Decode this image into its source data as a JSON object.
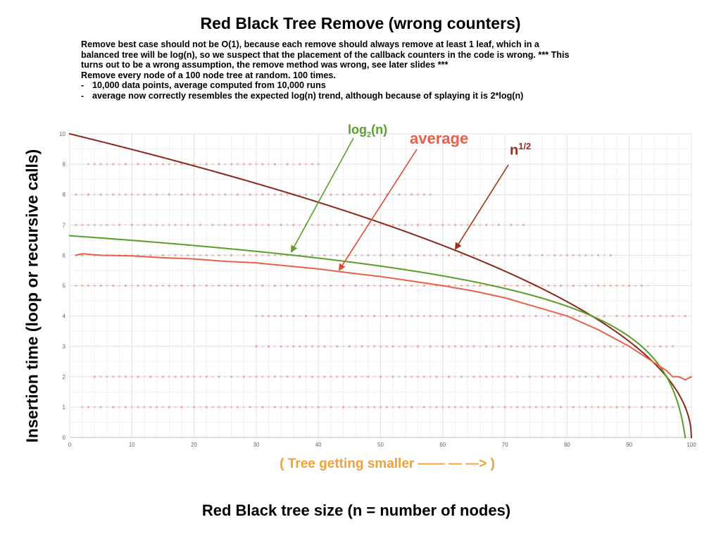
{
  "title": "Red Black Tree Remove (wrong counters)",
  "notes": {
    "lines": [
      "Remove best case should not be O(1), because each remove should always remove at least 1 leaf, which in a",
      "balanced tree will be log(n), so we suspect that the placement of the callback counters in the code is wrong. *** This",
      "turns out to be a wrong assumption, the remove method was wrong, see later slides ***",
      "Remove every node of a 100 node tree at random. 100 times."
    ],
    "bullets": [
      "10,000 data points, average computed from 10,000 runs",
      "average now correctly resembles the expected log(n) trend, although because of splaying it is 2*log(n)"
    ],
    "bullet_marker": "-"
  },
  "y_axis_label": "Insertion time (loop or recursive calls)",
  "x_note": "( Tree getting smaller —— — —> )",
  "x_axis_label": "Red Black tree size (n = number of nodes)",
  "annotations": {
    "log_base": "log",
    "log_sub": "2",
    "log_tail": "(n)",
    "average": "average",
    "sqrt_base": "n",
    "sqrt_exp": "1/2"
  },
  "colors": {
    "log_series": "#5aa02c",
    "average_series": "#e8604c",
    "sqrt_series": "#8b2a1e",
    "scatter_points": "#e8604c",
    "x_note": "#f0a03c"
  },
  "chart_data": {
    "type": "line",
    "xlim": [
      0,
      100
    ],
    "ylim": [
      0,
      10
    ],
    "x_ticks": [
      0,
      10,
      20,
      30,
      40,
      50,
      60,
      70,
      80,
      90,
      100
    ],
    "y_ticks": [
      0,
      1,
      2,
      3,
      4,
      5,
      6,
      7,
      8,
      9,
      10
    ],
    "grid": true,
    "series": [
      {
        "name": "n^(1/2)",
        "formula": "sqrt(100 - x)",
        "x": [
          0,
          10,
          20,
          30,
          40,
          50,
          60,
          70,
          80,
          84,
          90,
          95,
          98,
          100
        ],
        "y": [
          10.0,
          9.49,
          8.94,
          8.37,
          7.75,
          7.07,
          6.32,
          5.48,
          4.47,
          4.0,
          3.16,
          2.24,
          1.41,
          0.0
        ]
      },
      {
        "name": "log2(n)",
        "formula": "log2(100 - x)",
        "x": [
          0,
          10,
          20,
          30,
          40,
          50,
          60,
          70,
          80,
          84,
          90,
          95,
          98,
          99
        ],
        "y": [
          6.64,
          6.49,
          6.32,
          6.13,
          5.91,
          5.64,
          5.32,
          4.91,
          4.32,
          4.0,
          3.32,
          2.32,
          1.0,
          0.0
        ]
      },
      {
        "name": "average",
        "x": [
          1,
          2,
          5,
          10,
          15,
          20,
          25,
          30,
          35,
          40,
          45,
          50,
          55,
          60,
          65,
          70,
          75,
          80,
          85,
          90,
          93,
          96,
          97,
          98,
          99,
          100
        ],
        "y": [
          6.0,
          6.05,
          6.0,
          5.98,
          5.92,
          5.88,
          5.8,
          5.75,
          5.65,
          5.55,
          5.42,
          5.3,
          5.15,
          5.0,
          4.82,
          4.6,
          4.3,
          4.0,
          3.55,
          3.0,
          2.6,
          2.2,
          2.0,
          2.0,
          1.9,
          2.0
        ]
      }
    ],
    "scatter_points": {
      "name": "individual runs",
      "levels": [
        {
          "y": 1,
          "x_from": 2,
          "x_to": 97
        },
        {
          "y": 2,
          "x_from": 4,
          "x_to": 97
        },
        {
          "y": 3,
          "x_from": 30,
          "x_to": 97
        },
        {
          "y": 4,
          "x_from": 30,
          "x_to": 99
        },
        {
          "y": 5,
          "x_from": 1,
          "x_to": 93
        },
        {
          "y": 6,
          "x_from": 1,
          "x_to": 87
        },
        {
          "y": 7,
          "x_from": 1,
          "x_to": 73
        },
        {
          "y": 8,
          "x_from": 1,
          "x_to": 58
        },
        {
          "y": 9,
          "x_from": 3,
          "x_to": 40
        }
      ]
    }
  }
}
